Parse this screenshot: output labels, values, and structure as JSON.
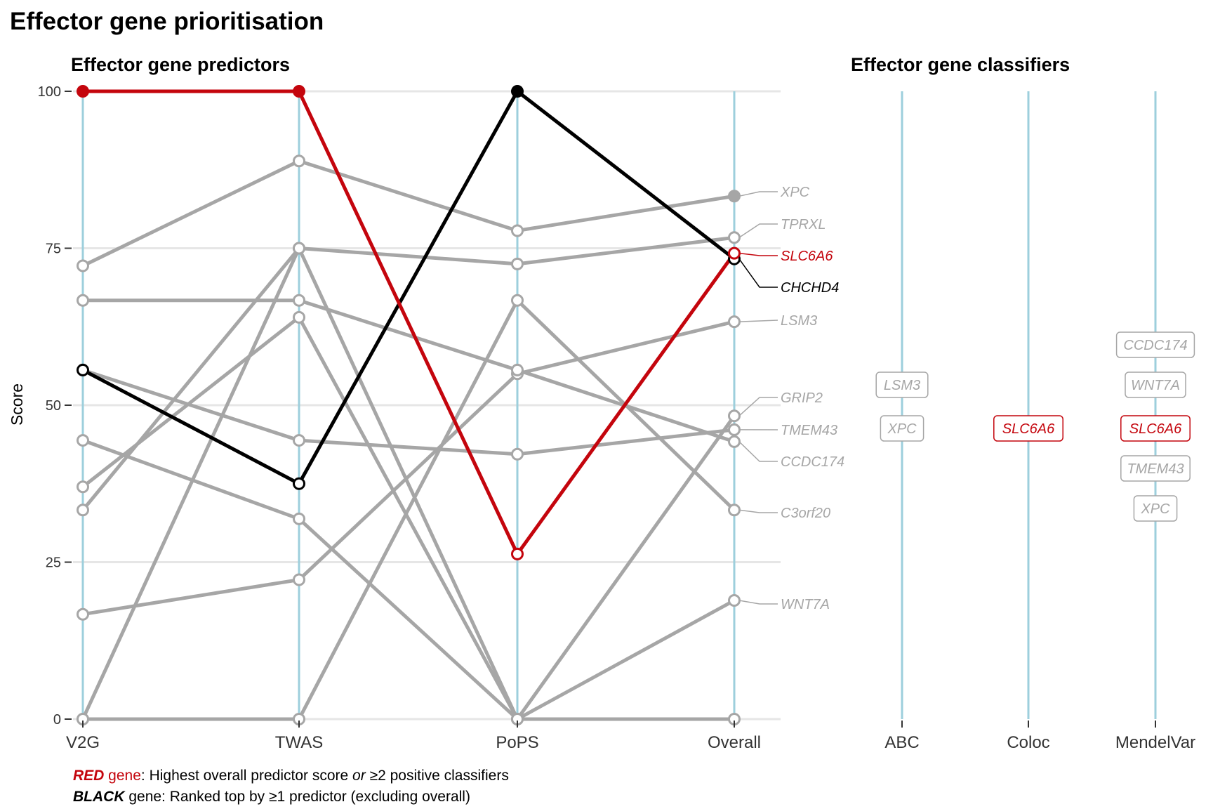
{
  "title": "Effector gene prioritisation",
  "colors": {
    "red": "#c4050d",
    "black": "#000000",
    "grey": "#a6a6a6",
    "axis_line": "#9dcfdc",
    "grid": "#e6e6e6"
  },
  "legend": {
    "line1": {
      "bold": "RED",
      "rest1": " gene",
      "rest2": ": Highest overall predictor score ",
      "italic": "or",
      "rest3": " ≥2 positive classifiers"
    },
    "line2": {
      "bold": "BLACK",
      "rest": " gene: Ranked top by ≥1 predictor (excluding overall)"
    }
  },
  "chart_data": [
    {
      "type": "line",
      "title": "Effector gene predictors",
      "xlabel": "",
      "ylabel": "Score",
      "categories": [
        "V2G",
        "TWAS",
        "PoPS",
        "Overall"
      ],
      "ylim": [
        0,
        100
      ],
      "yticks": [
        0,
        25,
        50,
        75,
        100
      ],
      "grid": true,
      "series": [
        {
          "name": "XPC",
          "color": "grey",
          "values": [
            72.2,
            88.9,
            77.8,
            83.3
          ]
        },
        {
          "name": "TPRXL",
          "color": "grey",
          "values": [
            0,
            75.0,
            72.5,
            76.7
          ]
        },
        {
          "name": "SLC6A6",
          "color": "red",
          "values": [
            100,
            100,
            26.3,
            74.2
          ]
        },
        {
          "name": "CHCHD4",
          "color": "black",
          "values": [
            55.6,
            37.5,
            100,
            73.3
          ]
        },
        {
          "name": "LSM3",
          "color": "grey",
          "values": [
            16.7,
            22.2,
            55.0,
            63.3
          ]
        },
        {
          "name": "GRIP2",
          "color": "grey",
          "values": [
            37.0,
            64.0,
            0,
            48.3
          ]
        },
        {
          "name": "TMEM43",
          "color": "grey",
          "values": [
            55.6,
            44.4,
            42.2,
            46.1
          ]
        },
        {
          "name": "CCDC174",
          "color": "grey",
          "values": [
            66.7,
            66.7,
            55.6,
            44.2
          ]
        },
        {
          "name": "C3orf20",
          "color": "grey",
          "values": [
            0,
            0,
            66.7,
            33.3
          ]
        },
        {
          "name": "WNT7A",
          "color": "grey",
          "values": [
            33.3,
            75.0,
            0,
            18.9
          ]
        },
        {
          "name": "",
          "color": "grey",
          "values": [
            44.4,
            31.9,
            0,
            0
          ]
        }
      ],
      "overall_labels": [
        {
          "name": "XPC",
          "color": "grey"
        },
        {
          "name": "TPRXL",
          "color": "grey"
        },
        {
          "name": "SLC6A6",
          "color": "red"
        },
        {
          "name": "CHCHD4",
          "color": "black"
        },
        {
          "name": "LSM3",
          "color": "grey"
        },
        {
          "name": "GRIP2",
          "color": "grey"
        },
        {
          "name": "TMEM43",
          "color": "grey"
        },
        {
          "name": "CCDC174",
          "color": "grey"
        },
        {
          "name": "C3orf20",
          "color": "grey"
        },
        {
          "name": "WNT7A",
          "color": "grey"
        }
      ]
    },
    {
      "type": "table",
      "title": "Effector gene classifiers",
      "categories": [
        "ABC",
        "Coloc",
        "MendelVar"
      ],
      "classifiers": [
        {
          "name": "ABC",
          "genes": [
            {
              "gene": "LSM3",
              "color": "grey"
            },
            {
              "gene": "XPC",
              "color": "grey"
            }
          ]
        },
        {
          "name": "Coloc",
          "genes": [
            {
              "gene": "SLC6A6",
              "color": "red"
            }
          ]
        },
        {
          "name": "MendelVar",
          "genes": [
            {
              "gene": "CCDC174",
              "color": "grey"
            },
            {
              "gene": "WNT7A",
              "color": "grey"
            },
            {
              "gene": "SLC6A6",
              "color": "red"
            },
            {
              "gene": "TMEM43",
              "color": "grey"
            },
            {
              "gene": "XPC",
              "color": "grey"
            }
          ]
        }
      ]
    }
  ]
}
